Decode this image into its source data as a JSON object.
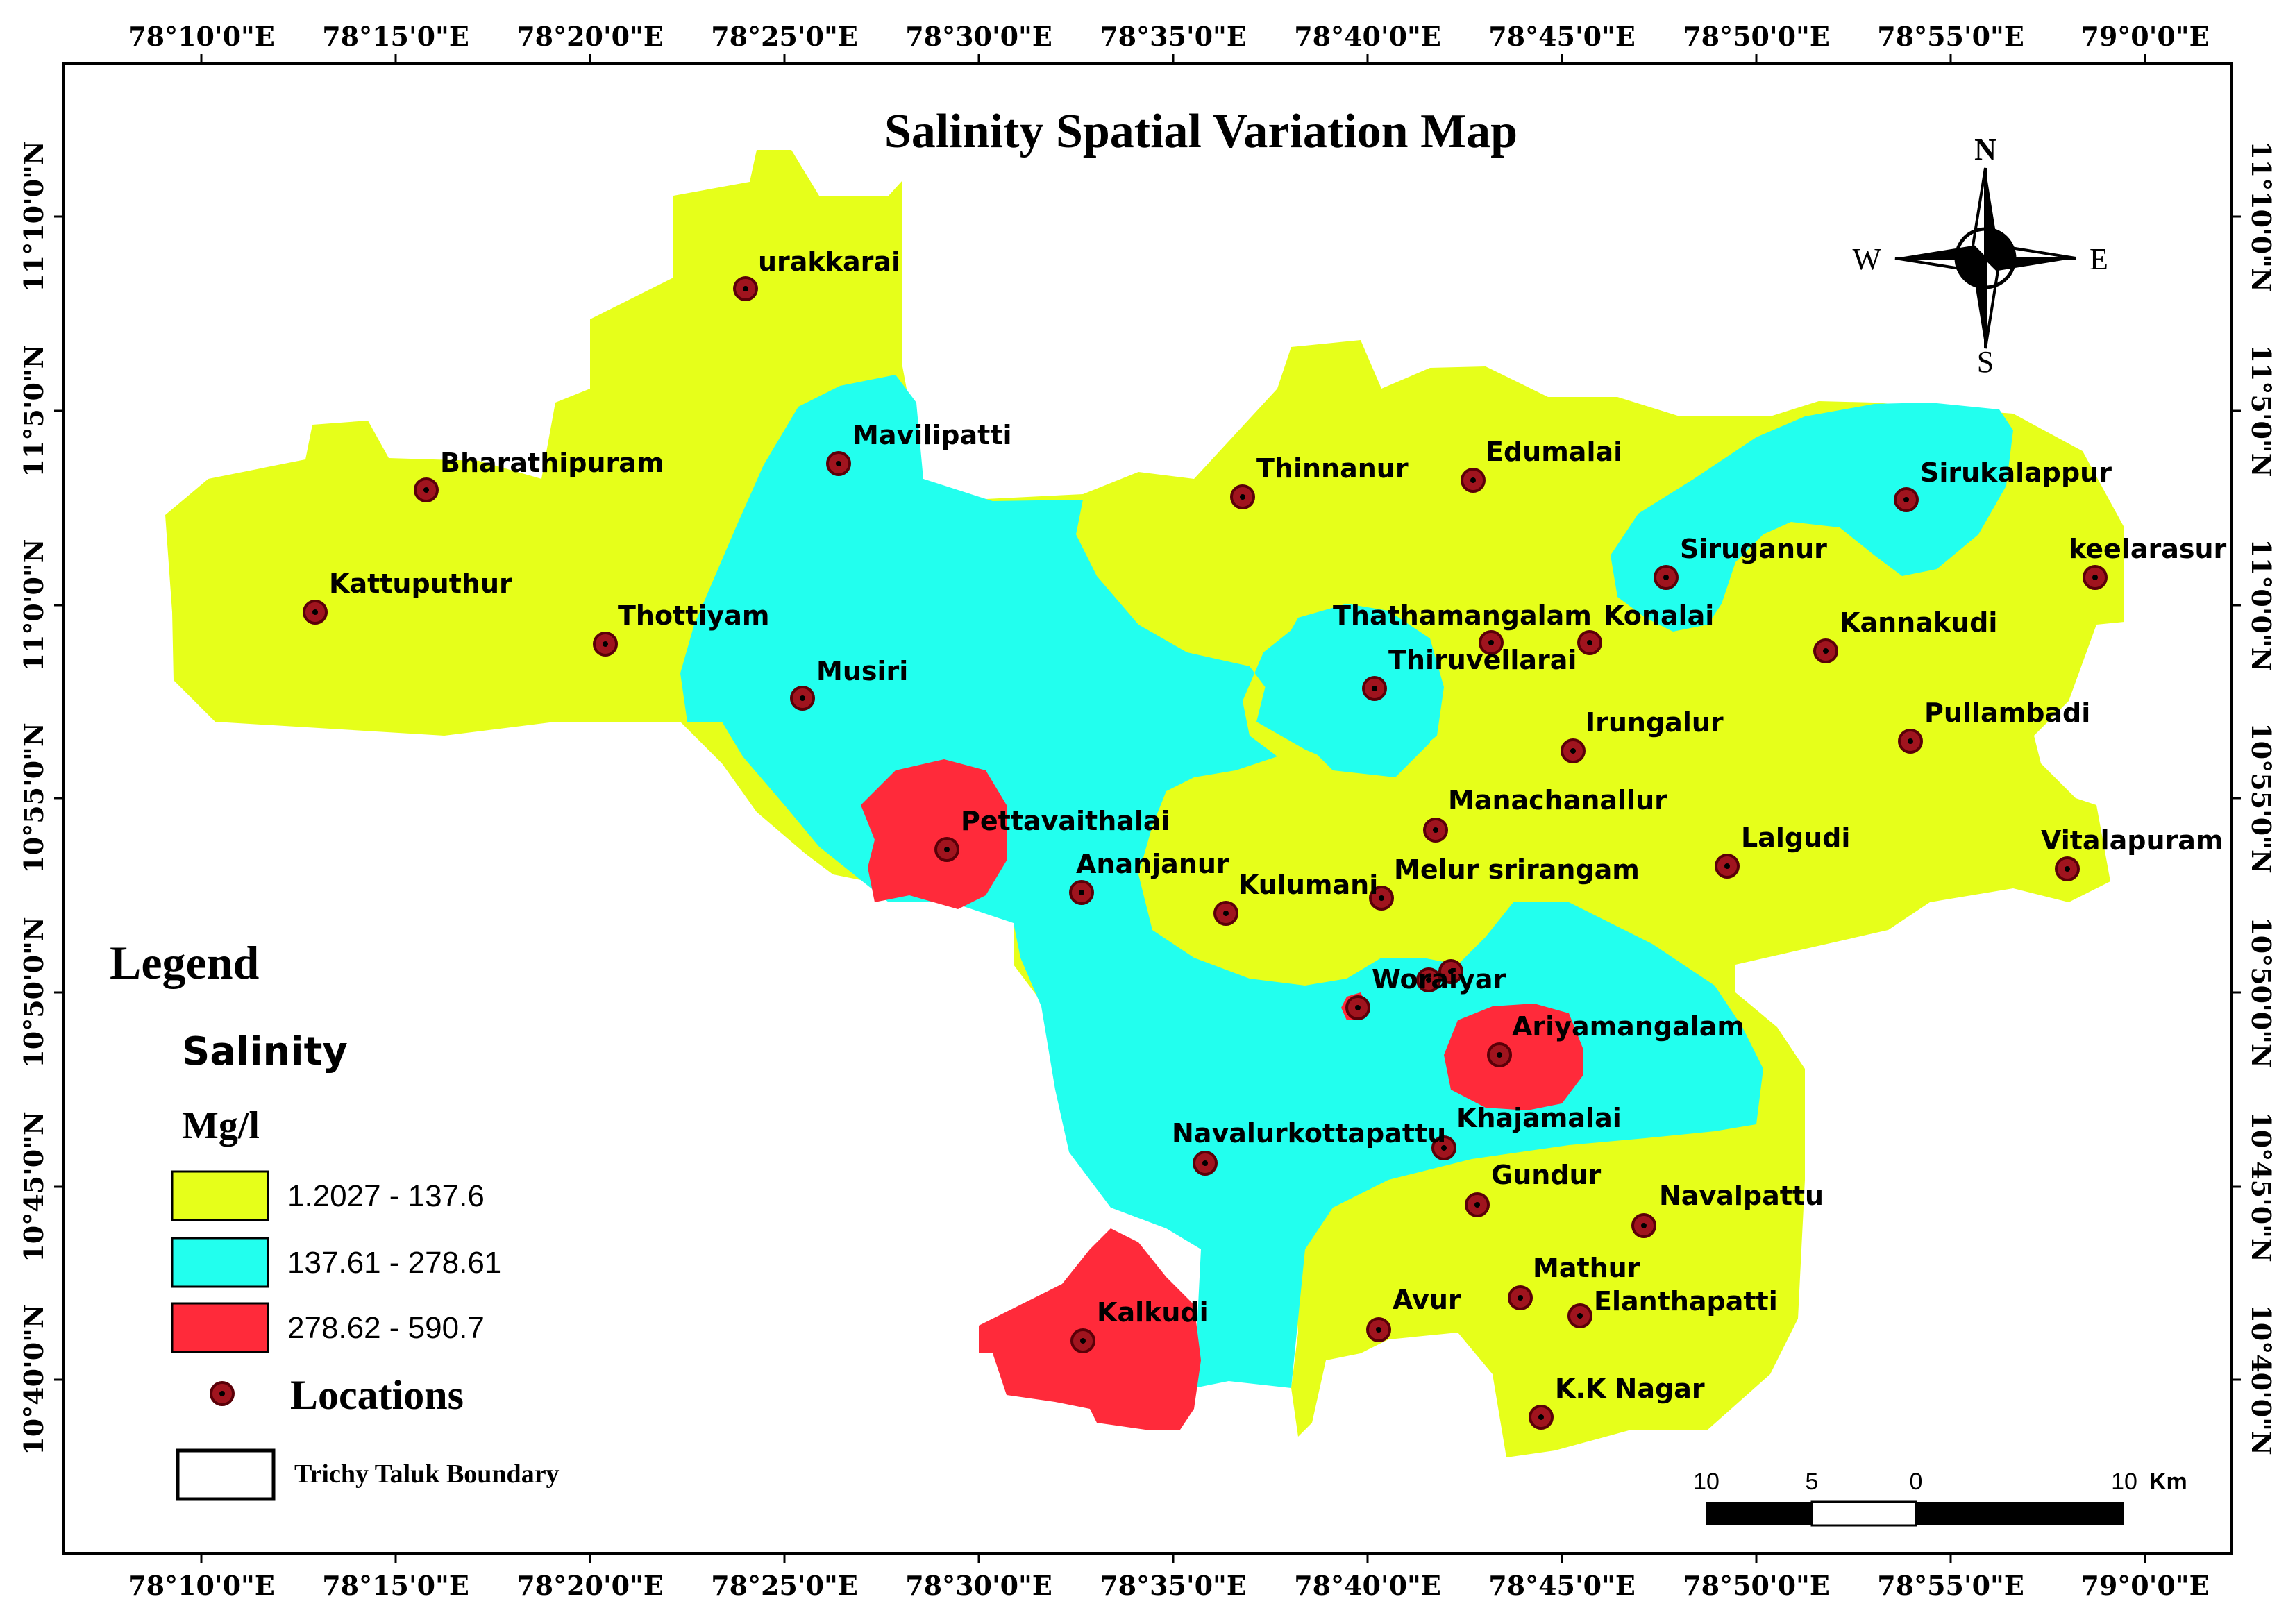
{
  "title": "Salinity Spatial Variation Map",
  "colors": {
    "class_low": "#e6ff1a",
    "class_mid": "#22ffee",
    "class_high": "#ff2a3a",
    "location_fill": "#a0141e",
    "boundary": "#000000"
  },
  "top_ticks": [
    "78°10'0\"E",
    "78°15'0\"E",
    "78°20'0\"E",
    "78°25'0\"E",
    "78°30'0\"E",
    "78°35'0\"E",
    "78°40'0\"E",
    "78°45'0\"E",
    "78°50'0\"E",
    "78°55'0\"E",
    "79°0'0\"E"
  ],
  "bottom_ticks": [
    "78°10'0\"E",
    "78°15'0\"E",
    "78°20'0\"E",
    "78°25'0\"E",
    "78°30'0\"E",
    "78°35'0\"E",
    "78°40'0\"E",
    "78°45'0\"E",
    "78°50'0\"E",
    "78°55'0\"E",
    "79°0'0\"E"
  ],
  "left_ticks": [
    "11°10'0\"N",
    "11°5'0\"N",
    "11°0'0\"N",
    "10°55'0\"N",
    "10°50'0\"N",
    "10°45'0\"N",
    "10°40'0\"N"
  ],
  "right_ticks": [
    "11°10'0\"N",
    "11°5'0\"N",
    "11°0'0\"N",
    "10°55'0\"N",
    "10°50'0\"N",
    "10°45'0\"N",
    "10°40'0\"N"
  ],
  "compass": {
    "n": "N",
    "s": "S",
    "e": "E",
    "w": "W"
  },
  "locations": [
    {
      "name": "urakkarai"
    },
    {
      "name": "Mavilipatti"
    },
    {
      "name": "Bharathipuram"
    },
    {
      "name": "Kattuputhur"
    },
    {
      "name": "Thottiyam"
    },
    {
      "name": "Musiri"
    },
    {
      "name": "Thinnanur"
    },
    {
      "name": "Edumalai"
    },
    {
      "name": "Sirukalappur"
    },
    {
      "name": "Siruganur"
    },
    {
      "name": "keelarasur"
    },
    {
      "name": "Thathamangalam"
    },
    {
      "name": "Konalai"
    },
    {
      "name": "Kannakudi"
    },
    {
      "name": "Thiruvellarai"
    },
    {
      "name": "Irungalur"
    },
    {
      "name": "Pullambadi"
    },
    {
      "name": "Manachanallur"
    },
    {
      "name": "Pettavaithalai"
    },
    {
      "name": "Lalgudi"
    },
    {
      "name": "Vitalapuram"
    },
    {
      "name": "Ananjanur"
    },
    {
      "name": "Kulumani"
    },
    {
      "name": "Melur srirangam"
    },
    {
      "name": "Woraiyar"
    },
    {
      "name": "Ariyamangalam"
    },
    {
      "name": "Khajamalai"
    },
    {
      "name": "Navalurkottapattu"
    },
    {
      "name": "Gundur"
    },
    {
      "name": "Navalpattu"
    },
    {
      "name": "Mathur"
    },
    {
      "name": "Elanthapatti"
    },
    {
      "name": "Avur"
    },
    {
      "name": "Kalkudi"
    },
    {
      "name": "K.K Nagar"
    }
  ],
  "legend": {
    "title": "Legend",
    "layer": "Salinity",
    "unit": "Mg/l",
    "classes": [
      {
        "range": "1.2027 - 137.6"
      },
      {
        "range": "137.61 - 278.61"
      },
      {
        "range": "278.62 - 590.7"
      }
    ],
    "locations_label": "Locations",
    "boundary_label": "Trichy Taluk Boundary"
  },
  "scale_bar": {
    "labels": [
      "10",
      "5",
      "0",
      "10"
    ],
    "unit": "Km"
  }
}
